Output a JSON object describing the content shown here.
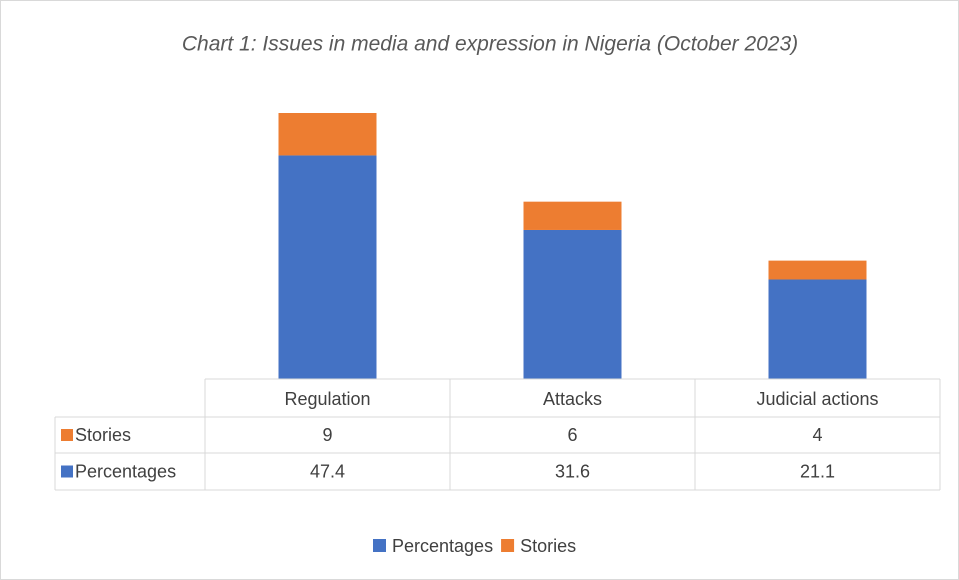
{
  "chart_data": {
    "type": "stacked_bar",
    "title": "Chart 1: Issues in media and expression in Nigeria (October 2023)",
    "categories": [
      "Regulation",
      "Attacks",
      "Judicial actions"
    ],
    "series": [
      {
        "name": "Percentages",
        "color": "#4472c4",
        "values": [
          47.4,
          31.6,
          21.1
        ]
      },
      {
        "name": "Stories",
        "color": "#ed7d31",
        "values": [
          9,
          6,
          4
        ]
      }
    ],
    "legend": "bottom"
  }
}
